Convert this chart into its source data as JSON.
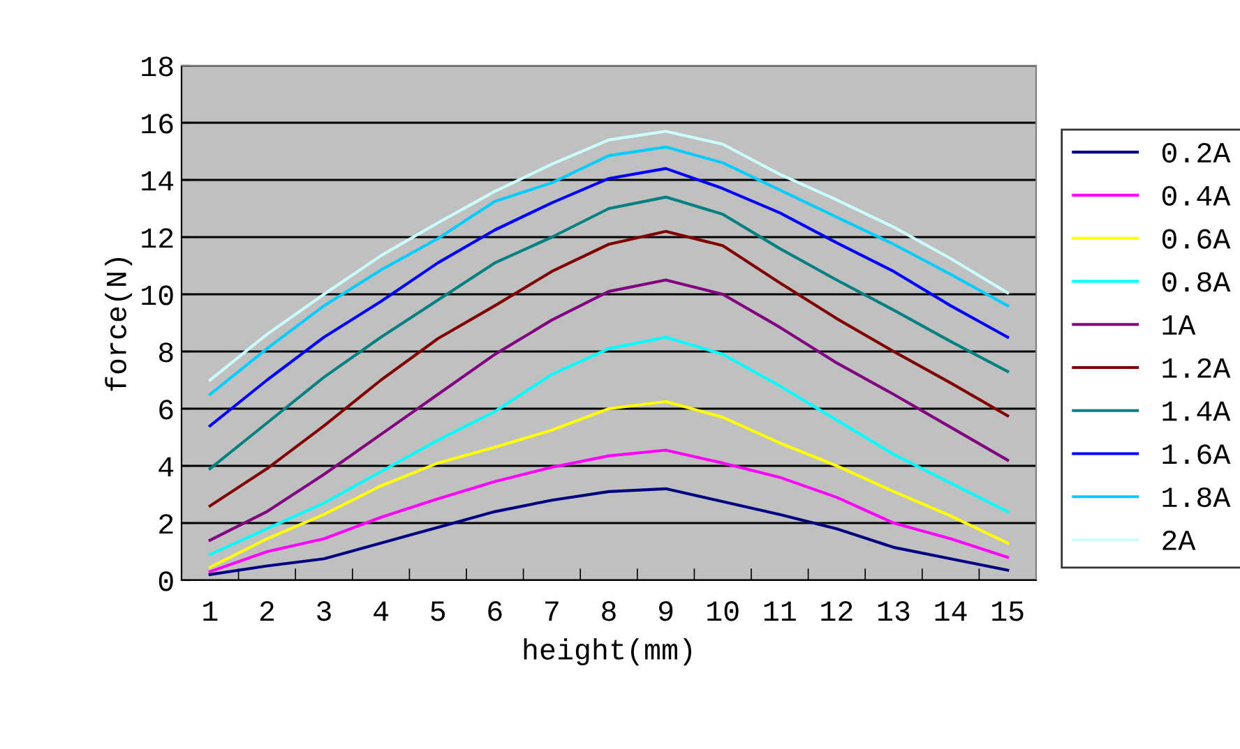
{
  "chart_data": {
    "type": "line",
    "xlabel": "height(mm)",
    "ylabel": "force(N)",
    "categories": [
      "1",
      "2",
      "3",
      "4",
      "5",
      "6",
      "7",
      "8",
      "9",
      "10",
      "11",
      "12",
      "13",
      "14",
      "15"
    ],
    "ylim": [
      0,
      18
    ],
    "yticks": [
      0,
      2,
      4,
      6,
      8,
      10,
      12,
      14,
      16,
      18
    ],
    "grid": "y",
    "legend": "right",
    "marker": "none",
    "line_style": "solid",
    "series": [
      {
        "name": "0.2A",
        "color": "#000080",
        "values": [
          0.2,
          0.5,
          0.75,
          1.3,
          1.85,
          2.4,
          2.8,
          3.1,
          3.2,
          2.75,
          2.3,
          1.8,
          1.15,
          0.75,
          0.35
        ]
      },
      {
        "name": "0.4A",
        "color": "#ff00ff",
        "values": [
          0.3,
          1.0,
          1.45,
          2.2,
          2.85,
          3.45,
          3.95,
          4.35,
          4.55,
          4.1,
          3.6,
          2.9,
          2.0,
          1.45,
          0.8
        ]
      },
      {
        "name": "0.6A",
        "color": "#ffff00",
        "values": [
          0.45,
          1.45,
          2.3,
          3.3,
          4.1,
          4.65,
          5.25,
          6.0,
          6.25,
          5.7,
          4.8,
          4.0,
          3.1,
          2.25,
          1.3
        ]
      },
      {
        "name": "0.8A",
        "color": "#00ffff",
        "values": [
          0.9,
          1.8,
          2.7,
          3.8,
          4.9,
          5.9,
          7.2,
          8.1,
          8.5,
          7.9,
          6.8,
          5.6,
          4.4,
          3.4,
          2.4
        ]
      },
      {
        "name": "1A",
        "color": "#800080",
        "values": [
          1.4,
          2.4,
          3.7,
          5.1,
          6.5,
          7.9,
          9.1,
          10.1,
          10.5,
          10.0,
          8.85,
          7.6,
          6.5,
          5.35,
          4.2
        ]
      },
      {
        "name": "1.2A",
        "color": "#800000",
        "values": [
          2.6,
          3.9,
          5.4,
          7.0,
          8.45,
          9.6,
          10.8,
          11.75,
          12.2,
          11.7,
          10.4,
          9.15,
          8.0,
          6.9,
          5.75
        ]
      },
      {
        "name": "1.4A",
        "color": "#008080",
        "values": [
          3.9,
          5.5,
          7.1,
          8.5,
          9.8,
          11.1,
          12.0,
          13.0,
          13.4,
          12.8,
          11.6,
          10.5,
          9.45,
          8.35,
          7.3
        ]
      },
      {
        "name": "1.6A",
        "color": "#0000ff",
        "values": [
          5.4,
          7.0,
          8.5,
          9.75,
          11.1,
          12.25,
          13.2,
          14.05,
          14.4,
          13.7,
          12.85,
          11.8,
          10.8,
          9.6,
          8.5
        ]
      },
      {
        "name": "1.8A",
        "color": "#00ccff",
        "values": [
          6.5,
          8.1,
          9.6,
          10.85,
          11.95,
          13.25,
          13.9,
          14.85,
          15.15,
          14.6,
          13.65,
          12.7,
          11.75,
          10.7,
          9.6
        ]
      },
      {
        "name": "2A",
        "color": "#ccffff",
        "values": [
          7.0,
          8.6,
          10.0,
          11.35,
          12.5,
          13.6,
          14.55,
          15.4,
          15.7,
          15.25,
          14.2,
          13.3,
          12.35,
          11.25,
          10.05
        ]
      }
    ]
  }
}
